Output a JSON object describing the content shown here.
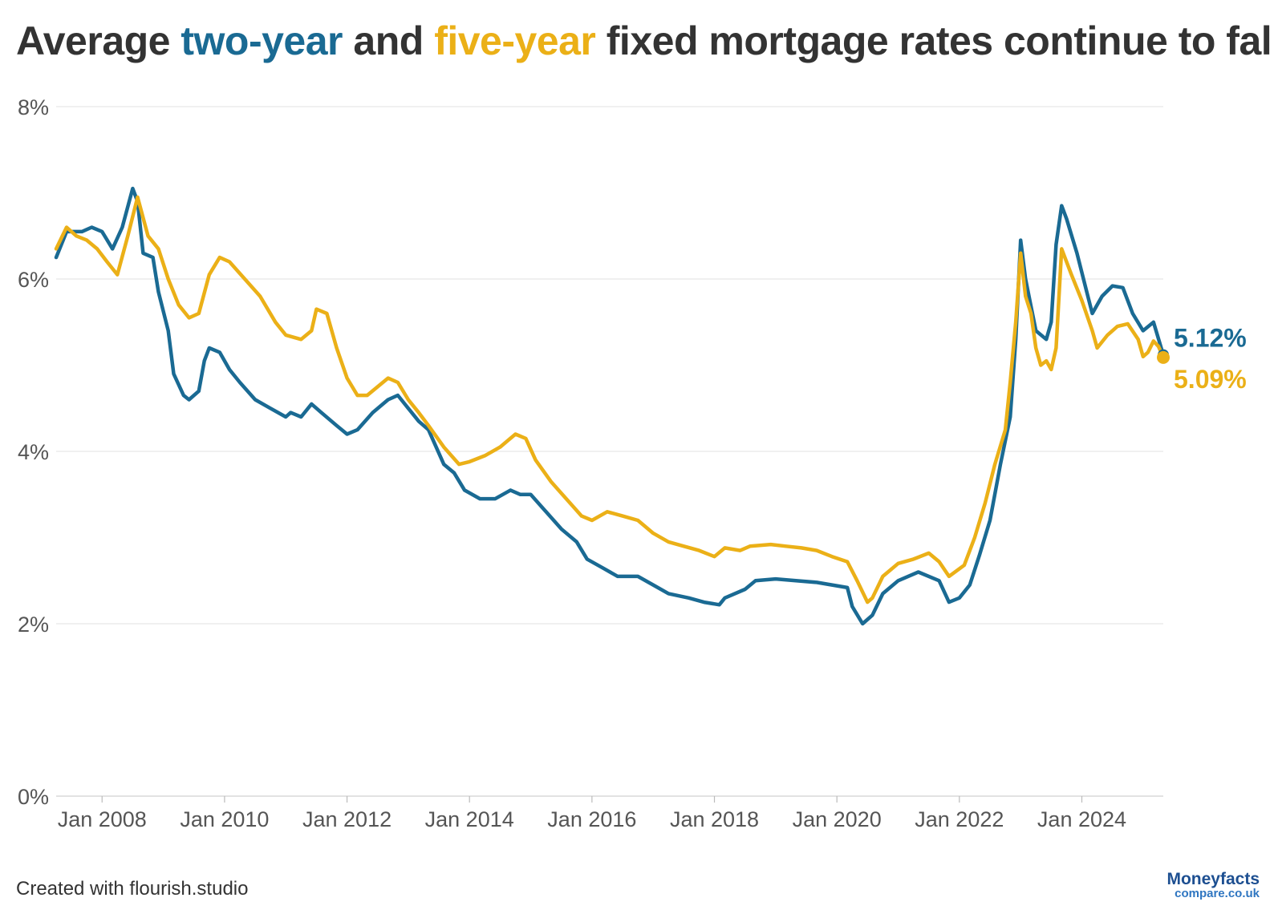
{
  "title": {
    "prefix": "Average ",
    "series1_word": "two-year",
    "middle": " and ",
    "series2_word": "five-year",
    "suffix": " fixed mortgage rates continue to fall"
  },
  "footer": {
    "credit": "Created with flourish.studio",
    "logo_line1": "Moneyfacts",
    "logo_line2": "compare.co.uk"
  },
  "colors": {
    "two_year": "#1a6a93",
    "five_year": "#ebb017",
    "grid": "#e6e6e6",
    "text": "#333333"
  },
  "chart_data": {
    "type": "line",
    "title": "Average two-year and five-year fixed mortgage rates continue to fall",
    "xlabel": "",
    "ylabel": "",
    "x_range": [
      2007.25,
      2025.33
    ],
    "ylim": [
      0,
      8
    ],
    "yticks": [
      0,
      2,
      4,
      6,
      8
    ],
    "ytick_labels": [
      "0%",
      "2%",
      "4%",
      "6%",
      "8%"
    ],
    "xticks": [
      2008,
      2010,
      2012,
      2014,
      2016,
      2018,
      2020,
      2022,
      2024
    ],
    "xtick_labels": [
      "Jan 2008",
      "Jan 2010",
      "Jan 2012",
      "Jan 2014",
      "Jan 2016",
      "Jan 2018",
      "Jan 2020",
      "Jan 2022",
      "Jan 2024"
    ],
    "grid": true,
    "series": [
      {
        "name": "two-year",
        "end_label": "5.12%",
        "points": [
          [
            2007.25,
            6.25
          ],
          [
            2007.42,
            6.55
          ],
          [
            2007.67,
            6.55
          ],
          [
            2007.83,
            6.6
          ],
          [
            2008.0,
            6.55
          ],
          [
            2008.17,
            6.35
          ],
          [
            2008.33,
            6.6
          ],
          [
            2008.5,
            7.05
          ],
          [
            2008.58,
            6.9
          ],
          [
            2008.67,
            6.3
          ],
          [
            2008.83,
            6.25
          ],
          [
            2008.92,
            5.85
          ],
          [
            2009.08,
            5.4
          ],
          [
            2009.17,
            4.9
          ],
          [
            2009.33,
            4.65
          ],
          [
            2009.42,
            4.6
          ],
          [
            2009.58,
            4.7
          ],
          [
            2009.67,
            5.05
          ],
          [
            2009.75,
            5.2
          ],
          [
            2009.92,
            5.15
          ],
          [
            2010.08,
            4.95
          ],
          [
            2010.25,
            4.8
          ],
          [
            2010.5,
            4.6
          ],
          [
            2010.75,
            4.5
          ],
          [
            2011.0,
            4.4
          ],
          [
            2011.08,
            4.45
          ],
          [
            2011.25,
            4.4
          ],
          [
            2011.42,
            4.55
          ],
          [
            2011.58,
            4.45
          ],
          [
            2011.83,
            4.3
          ],
          [
            2012.0,
            4.2
          ],
          [
            2012.17,
            4.25
          ],
          [
            2012.42,
            4.45
          ],
          [
            2012.67,
            4.6
          ],
          [
            2012.83,
            4.65
          ],
          [
            2013.0,
            4.5
          ],
          [
            2013.17,
            4.35
          ],
          [
            2013.33,
            4.25
          ],
          [
            2013.58,
            3.85
          ],
          [
            2013.75,
            3.75
          ],
          [
            2013.92,
            3.55
          ],
          [
            2014.17,
            3.45
          ],
          [
            2014.42,
            3.45
          ],
          [
            2014.67,
            3.55
          ],
          [
            2014.83,
            3.5
          ],
          [
            2015.0,
            3.5
          ],
          [
            2015.25,
            3.3
          ],
          [
            2015.5,
            3.1
          ],
          [
            2015.75,
            2.95
          ],
          [
            2015.92,
            2.75
          ],
          [
            2016.17,
            2.65
          ],
          [
            2016.42,
            2.55
          ],
          [
            2016.75,
            2.55
          ],
          [
            2017.0,
            2.45
          ],
          [
            2017.25,
            2.35
          ],
          [
            2017.58,
            2.3
          ],
          [
            2017.83,
            2.25
          ],
          [
            2018.08,
            2.22
          ],
          [
            2018.17,
            2.3
          ],
          [
            2018.5,
            2.4
          ],
          [
            2018.67,
            2.5
          ],
          [
            2019.0,
            2.52
          ],
          [
            2019.33,
            2.5
          ],
          [
            2019.67,
            2.48
          ],
          [
            2019.92,
            2.45
          ],
          [
            2020.17,
            2.42
          ],
          [
            2020.25,
            2.2
          ],
          [
            2020.42,
            2.0
          ],
          [
            2020.58,
            2.1
          ],
          [
            2020.75,
            2.35
          ],
          [
            2021.0,
            2.5
          ],
          [
            2021.33,
            2.6
          ],
          [
            2021.67,
            2.5
          ],
          [
            2021.83,
            2.25
          ],
          [
            2022.0,
            2.3
          ],
          [
            2022.17,
            2.45
          ],
          [
            2022.33,
            2.8
          ],
          [
            2022.5,
            3.2
          ],
          [
            2022.67,
            3.85
          ],
          [
            2022.83,
            4.4
          ],
          [
            2022.92,
            5.3
          ],
          [
            2023.0,
            6.45
          ],
          [
            2023.08,
            6.0
          ],
          [
            2023.25,
            5.4
          ],
          [
            2023.42,
            5.3
          ],
          [
            2023.5,
            5.5
          ],
          [
            2023.58,
            6.4
          ],
          [
            2023.67,
            6.85
          ],
          [
            2023.75,
            6.7
          ],
          [
            2023.92,
            6.3
          ],
          [
            2024.08,
            5.85
          ],
          [
            2024.17,
            5.6
          ],
          [
            2024.33,
            5.8
          ],
          [
            2024.5,
            5.92
          ],
          [
            2024.67,
            5.9
          ],
          [
            2024.83,
            5.6
          ],
          [
            2025.0,
            5.4
          ],
          [
            2025.17,
            5.5
          ],
          [
            2025.33,
            5.12
          ]
        ]
      },
      {
        "name": "five-year",
        "end_label": "5.09%",
        "points": [
          [
            2007.25,
            6.35
          ],
          [
            2007.42,
            6.6
          ],
          [
            2007.58,
            6.5
          ],
          [
            2007.75,
            6.45
          ],
          [
            2007.92,
            6.35
          ],
          [
            2008.08,
            6.2
          ],
          [
            2008.25,
            6.05
          ],
          [
            2008.42,
            6.5
          ],
          [
            2008.58,
            6.95
          ],
          [
            2008.75,
            6.5
          ],
          [
            2008.92,
            6.35
          ],
          [
            2009.08,
            6.0
          ],
          [
            2009.25,
            5.7
          ],
          [
            2009.42,
            5.55
          ],
          [
            2009.58,
            5.6
          ],
          [
            2009.75,
            6.05
          ],
          [
            2009.92,
            6.25
          ],
          [
            2010.08,
            6.2
          ],
          [
            2010.33,
            6.0
          ],
          [
            2010.58,
            5.8
          ],
          [
            2010.83,
            5.5
          ],
          [
            2011.0,
            5.35
          ],
          [
            2011.25,
            5.3
          ],
          [
            2011.42,
            5.4
          ],
          [
            2011.5,
            5.65
          ],
          [
            2011.67,
            5.6
          ],
          [
            2011.83,
            5.2
          ],
          [
            2012.0,
            4.85
          ],
          [
            2012.17,
            4.65
          ],
          [
            2012.33,
            4.65
          ],
          [
            2012.5,
            4.75
          ],
          [
            2012.67,
            4.85
          ],
          [
            2012.83,
            4.8
          ],
          [
            2013.0,
            4.6
          ],
          [
            2013.17,
            4.45
          ],
          [
            2013.33,
            4.3
          ],
          [
            2013.58,
            4.05
          ],
          [
            2013.83,
            3.85
          ],
          [
            2014.0,
            3.88
          ],
          [
            2014.25,
            3.95
          ],
          [
            2014.5,
            4.05
          ],
          [
            2014.75,
            4.2
          ],
          [
            2014.92,
            4.15
          ],
          [
            2015.08,
            3.9
          ],
          [
            2015.33,
            3.65
          ],
          [
            2015.58,
            3.45
          ],
          [
            2015.83,
            3.25
          ],
          [
            2016.0,
            3.2
          ],
          [
            2016.25,
            3.3
          ],
          [
            2016.5,
            3.25
          ],
          [
            2016.75,
            3.2
          ],
          [
            2017.0,
            3.05
          ],
          [
            2017.25,
            2.95
          ],
          [
            2017.5,
            2.9
          ],
          [
            2017.75,
            2.85
          ],
          [
            2018.0,
            2.78
          ],
          [
            2018.17,
            2.88
          ],
          [
            2018.42,
            2.85
          ],
          [
            2018.58,
            2.9
          ],
          [
            2018.92,
            2.92
          ],
          [
            2019.17,
            2.9
          ],
          [
            2019.42,
            2.88
          ],
          [
            2019.67,
            2.85
          ],
          [
            2019.92,
            2.78
          ],
          [
            2020.17,
            2.72
          ],
          [
            2020.33,
            2.5
          ],
          [
            2020.5,
            2.25
          ],
          [
            2020.58,
            2.3
          ],
          [
            2020.75,
            2.55
          ],
          [
            2021.0,
            2.7
          ],
          [
            2021.25,
            2.75
          ],
          [
            2021.5,
            2.82
          ],
          [
            2021.67,
            2.72
          ],
          [
            2021.83,
            2.55
          ],
          [
            2022.08,
            2.68
          ],
          [
            2022.25,
            3.0
          ],
          [
            2022.42,
            3.4
          ],
          [
            2022.58,
            3.85
          ],
          [
            2022.75,
            4.25
          ],
          [
            2022.83,
            4.8
          ],
          [
            2022.92,
            5.5
          ],
          [
            2023.0,
            6.3
          ],
          [
            2023.08,
            5.8
          ],
          [
            2023.17,
            5.6
          ],
          [
            2023.25,
            5.2
          ],
          [
            2023.33,
            5.0
          ],
          [
            2023.42,
            5.05
          ],
          [
            2023.5,
            4.95
          ],
          [
            2023.58,
            5.2
          ],
          [
            2023.67,
            6.35
          ],
          [
            2023.83,
            6.05
          ],
          [
            2024.0,
            5.75
          ],
          [
            2024.17,
            5.4
          ],
          [
            2024.25,
            5.2
          ],
          [
            2024.42,
            5.35
          ],
          [
            2024.58,
            5.45
          ],
          [
            2024.75,
            5.48
          ],
          [
            2024.92,
            5.3
          ],
          [
            2025.0,
            5.1
          ],
          [
            2025.08,
            5.15
          ],
          [
            2025.17,
            5.28
          ],
          [
            2025.25,
            5.22
          ],
          [
            2025.33,
            5.09
          ]
        ]
      }
    ]
  }
}
